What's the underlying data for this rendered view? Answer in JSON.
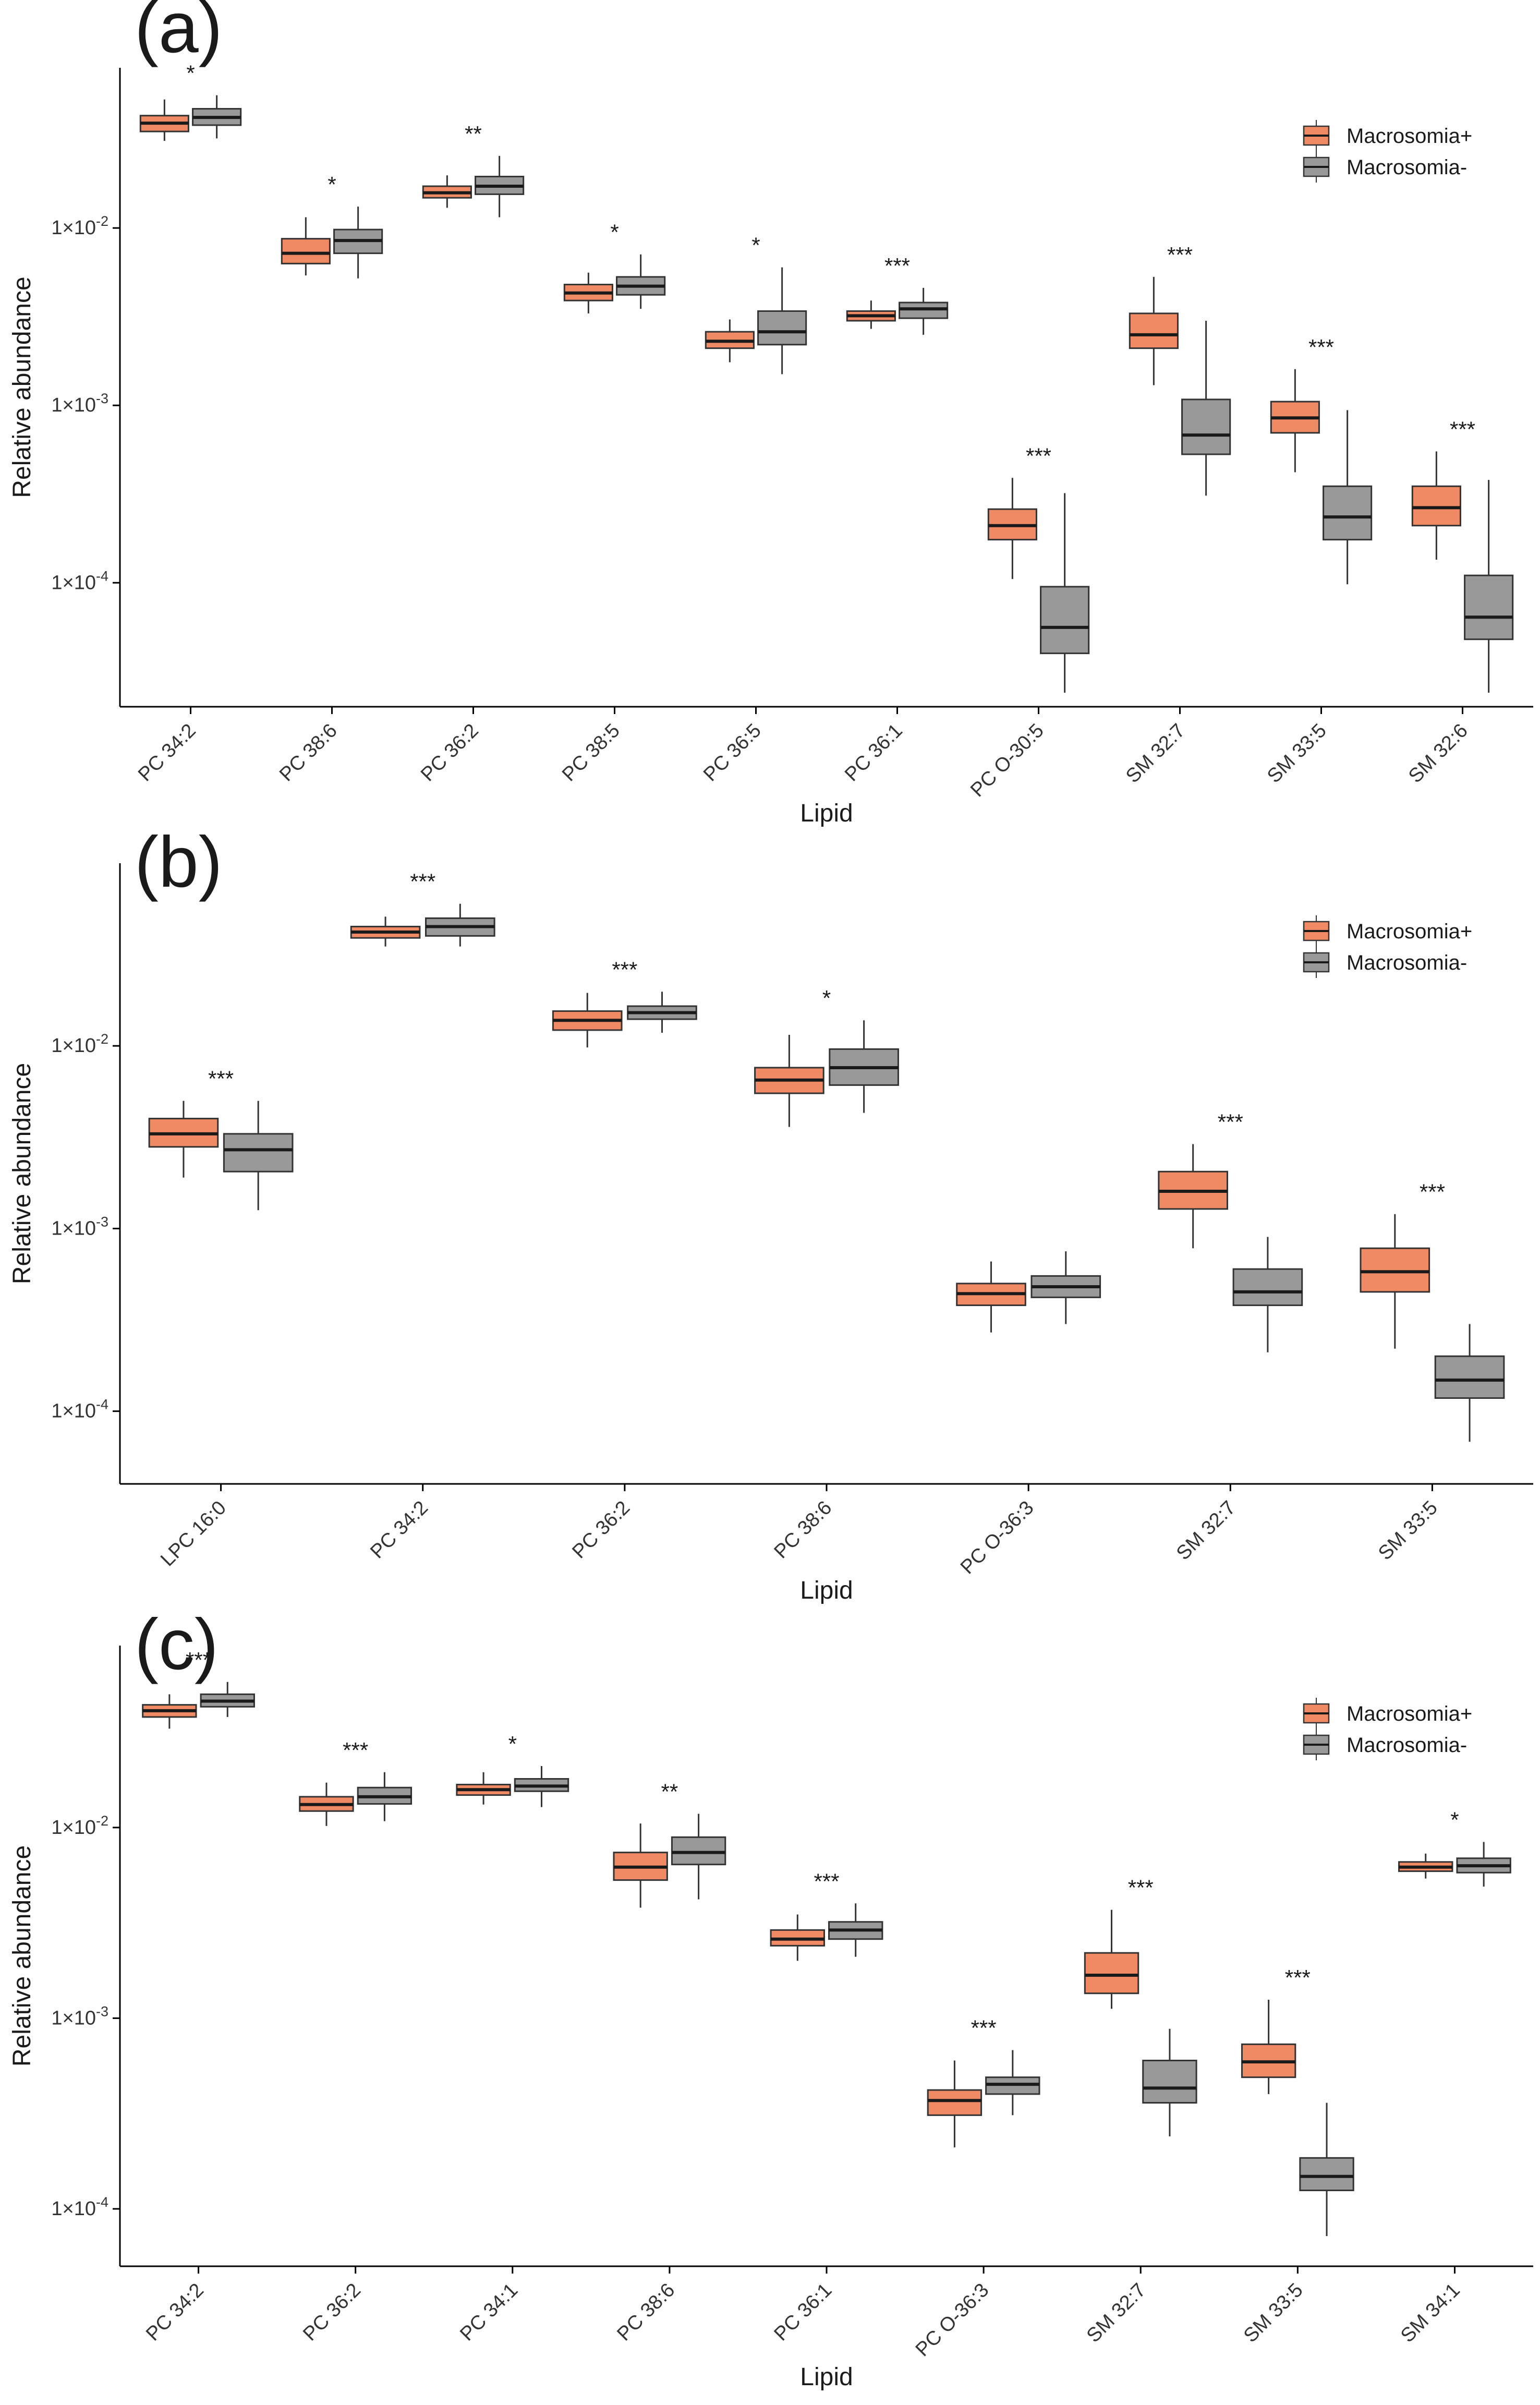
{
  "colors": {
    "macrosomia_pos": "#F08A65",
    "macrosomia_neg": "#999999",
    "box_stroke": "#333333",
    "median": "#1a1a1a",
    "axis": "#000000",
    "text": "#1a1a1a"
  },
  "legend_labels": [
    "Macrosomia+",
    "Macrosomia-"
  ],
  "legend_position": "top-right",
  "chart_data": [
    {
      "panel_label": "(a)",
      "type": "box",
      "yscale": "log",
      "ylabel": "Relative abundance",
      "xlabel": "Lipid",
      "ylim": [
        2e-05,
        0.08
      ],
      "yticks": [
        0.0001,
        0.001,
        0.01
      ],
      "ytick_labels": [
        "1×10",
        "1×10",
        "1×10"
      ],
      "ytick_exponents": [
        "-4",
        "-3",
        "-2"
      ],
      "categories": [
        "PC 34:2",
        "PC 38:6",
        "PC 36:2",
        "PC 38:5",
        "PC 36:5",
        "PC 36:1",
        "PC O-30:5",
        "SM 32:7",
        "SM 33:5",
        "SM 32:6"
      ],
      "significance": [
        "*",
        "*",
        "**",
        "*",
        "*",
        "***",
        "***",
        "***",
        "***",
        "***"
      ],
      "series": [
        {
          "name": "Macrosomia+",
          "boxes": [
            [
              0.031,
              0.035,
              0.039,
              0.043,
              0.053
            ],
            [
              0.0054,
              0.0063,
              0.0072,
              0.0087,
              0.0115
            ],
            [
              0.013,
              0.0148,
              0.0158,
              0.0172,
              0.0198
            ],
            [
              0.0033,
              0.0039,
              0.0043,
              0.0048,
              0.0056
            ],
            [
              0.00175,
              0.0021,
              0.0023,
              0.0026,
              0.00305
            ],
            [
              0.0027,
              0.003,
              0.0032,
              0.0034,
              0.0039
            ],
            [
              0.000105,
              0.000175,
              0.00021,
              0.00026,
              0.00039
            ],
            [
              0.0013,
              0.0021,
              0.0025,
              0.0033,
              0.0053
            ],
            [
              0.00042,
              0.0007,
              0.00085,
              0.00105,
              0.0016
            ],
            [
              0.000135,
              0.00021,
              0.000265,
              0.00035,
              0.00055
            ]
          ]
        },
        {
          "name": "Macrosomia-",
          "boxes": [
            [
              0.032,
              0.038,
              0.042,
              0.047,
              0.056
            ],
            [
              0.0052,
              0.0072,
              0.0085,
              0.0098,
              0.0132
            ],
            [
              0.0115,
              0.0155,
              0.0172,
              0.0195,
              0.0255
            ],
            [
              0.0035,
              0.0042,
              0.0047,
              0.0053,
              0.0071
            ],
            [
              0.0015,
              0.0022,
              0.0026,
              0.0034,
              0.006
            ],
            [
              0.0025,
              0.0031,
              0.0035,
              0.0038,
              0.0046
            ],
            [
              2.4e-05,
              4e-05,
              5.6e-05,
              9.5e-05,
              0.00032
            ],
            [
              0.00031,
              0.00053,
              0.00068,
              0.00108,
              0.003
            ],
            [
              9.8e-05,
              0.000175,
              0.000235,
              0.00035,
              0.00094
            ],
            [
              2.4e-05,
              4.8e-05,
              6.4e-05,
              0.00011,
              0.00038
            ]
          ]
        }
      ]
    },
    {
      "panel_label": "(b)",
      "type": "box",
      "yscale": "log",
      "ylabel": "Relative abundance",
      "xlabel": "Lipid",
      "ylim": [
        4e-05,
        0.1
      ],
      "yticks": [
        0.0001,
        0.001,
        0.01
      ],
      "ytick_labels": [
        "1×10",
        "1×10",
        "1×10"
      ],
      "ytick_exponents": [
        "-4",
        "-3",
        "-2"
      ],
      "categories": [
        "LPC 16:0",
        "PC 34:2",
        "PC 36:2",
        "PC 38:6",
        "PC O-36:3",
        "SM 32:7",
        "SM 33:5"
      ],
      "significance": [
        "***",
        "***",
        "***",
        "*",
        "",
        "***",
        "***"
      ],
      "series": [
        {
          "name": "Macrosomia+",
          "boxes": [
            [
              0.0019,
              0.0028,
              0.0033,
              0.004,
              0.005
            ],
            [
              0.035,
              0.039,
              0.042,
              0.045,
              0.051
            ],
            [
              0.0098,
              0.0122,
              0.0138,
              0.0155,
              0.0195
            ],
            [
              0.0036,
              0.0055,
              0.0065,
              0.0076,
              0.0115
            ],
            [
              0.00027,
              0.00038,
              0.00044,
              0.0005,
              0.00066
            ],
            [
              0.00078,
              0.00128,
              0.0016,
              0.00205,
              0.0029
            ],
            [
              0.00022,
              0.00045,
              0.00058,
              0.00078,
              0.0012
            ]
          ]
        },
        {
          "name": "Macrosomia-",
          "boxes": [
            [
              0.00126,
              0.00205,
              0.0027,
              0.0033,
              0.005
            ],
            [
              0.035,
              0.04,
              0.045,
              0.05,
              0.06
            ],
            [
              0.0118,
              0.014,
              0.0152,
              0.0165,
              0.0198
            ],
            [
              0.0043,
              0.0061,
              0.0076,
              0.0096,
              0.0138
            ],
            [
              0.0003,
              0.00042,
              0.00048,
              0.00055,
              0.00075
            ],
            [
              0.00021,
              0.00038,
              0.00045,
              0.0006,
              0.0009
            ],
            [
              6.8e-05,
              0.000118,
              0.000148,
              0.0002,
              0.0003
            ]
          ]
        }
      ]
    },
    {
      "panel_label": "(c)",
      "type": "box",
      "yscale": "log",
      "ylabel": "Relative abundance",
      "xlabel": "Lipid",
      "ylim": [
        5e-05,
        0.09
      ],
      "yticks": [
        0.0001,
        0.001,
        0.01
      ],
      "ytick_labels": [
        "1×10",
        "1×10",
        "1×10"
      ],
      "ytick_exponents": [
        "-4",
        "-3",
        "-2"
      ],
      "categories": [
        "PC 34:2",
        "PC 36:2",
        "PC 34:1",
        "PC 38:6",
        "PC 36:1",
        "PC O-36:3",
        "SM 32:7",
        "SM 33:5",
        "SM 34:1"
      ],
      "significance": [
        "***",
        "***",
        "*",
        "**",
        "***",
        "***",
        "***",
        "***",
        "*"
      ],
      "series": [
        {
          "name": "Macrosomia+",
          "boxes": [
            [
              0.033,
              0.038,
              0.041,
              0.044,
              0.05
            ],
            [
              0.0102,
              0.0122,
              0.0132,
              0.0145,
              0.0172
            ],
            [
              0.0132,
              0.0148,
              0.0158,
              0.0168,
              0.0195
            ],
            [
              0.0038,
              0.0053,
              0.0062,
              0.0074,
              0.0105
            ],
            [
              0.002,
              0.0024,
              0.0026,
              0.0029,
              0.0035
            ],
            [
              0.00021,
              0.00031,
              0.00037,
              0.00042,
              0.0006
            ],
            [
              0.00112,
              0.00135,
              0.00168,
              0.0022,
              0.0037
            ],
            [
              0.0004,
              0.00049,
              0.00059,
              0.00073,
              0.00125
            ],
            [
              0.0054,
              0.0059,
              0.0062,
              0.0066,
              0.0073
            ]
          ]
        },
        {
          "name": "Macrosomia-",
          "boxes": [
            [
              0.038,
              0.043,
              0.046,
              0.05,
              0.058
            ],
            [
              0.0108,
              0.0133,
              0.0145,
              0.0162,
              0.0195
            ],
            [
              0.0128,
              0.0155,
              0.0165,
              0.018,
              0.021
            ],
            [
              0.0042,
              0.0064,
              0.0074,
              0.0089,
              0.0118
            ],
            [
              0.0021,
              0.0026,
              0.0029,
              0.0032,
              0.004
            ],
            [
              0.00031,
              0.0004,
              0.00045,
              0.00049,
              0.00068
            ],
            [
              0.00024,
              0.00036,
              0.00043,
              0.0006,
              0.00088
            ],
            [
              7.2e-05,
              0.000125,
              0.000148,
              0.000185,
              0.00036
            ],
            [
              0.0049,
              0.0058,
              0.0063,
              0.0069,
              0.0084
            ]
          ]
        }
      ]
    }
  ]
}
